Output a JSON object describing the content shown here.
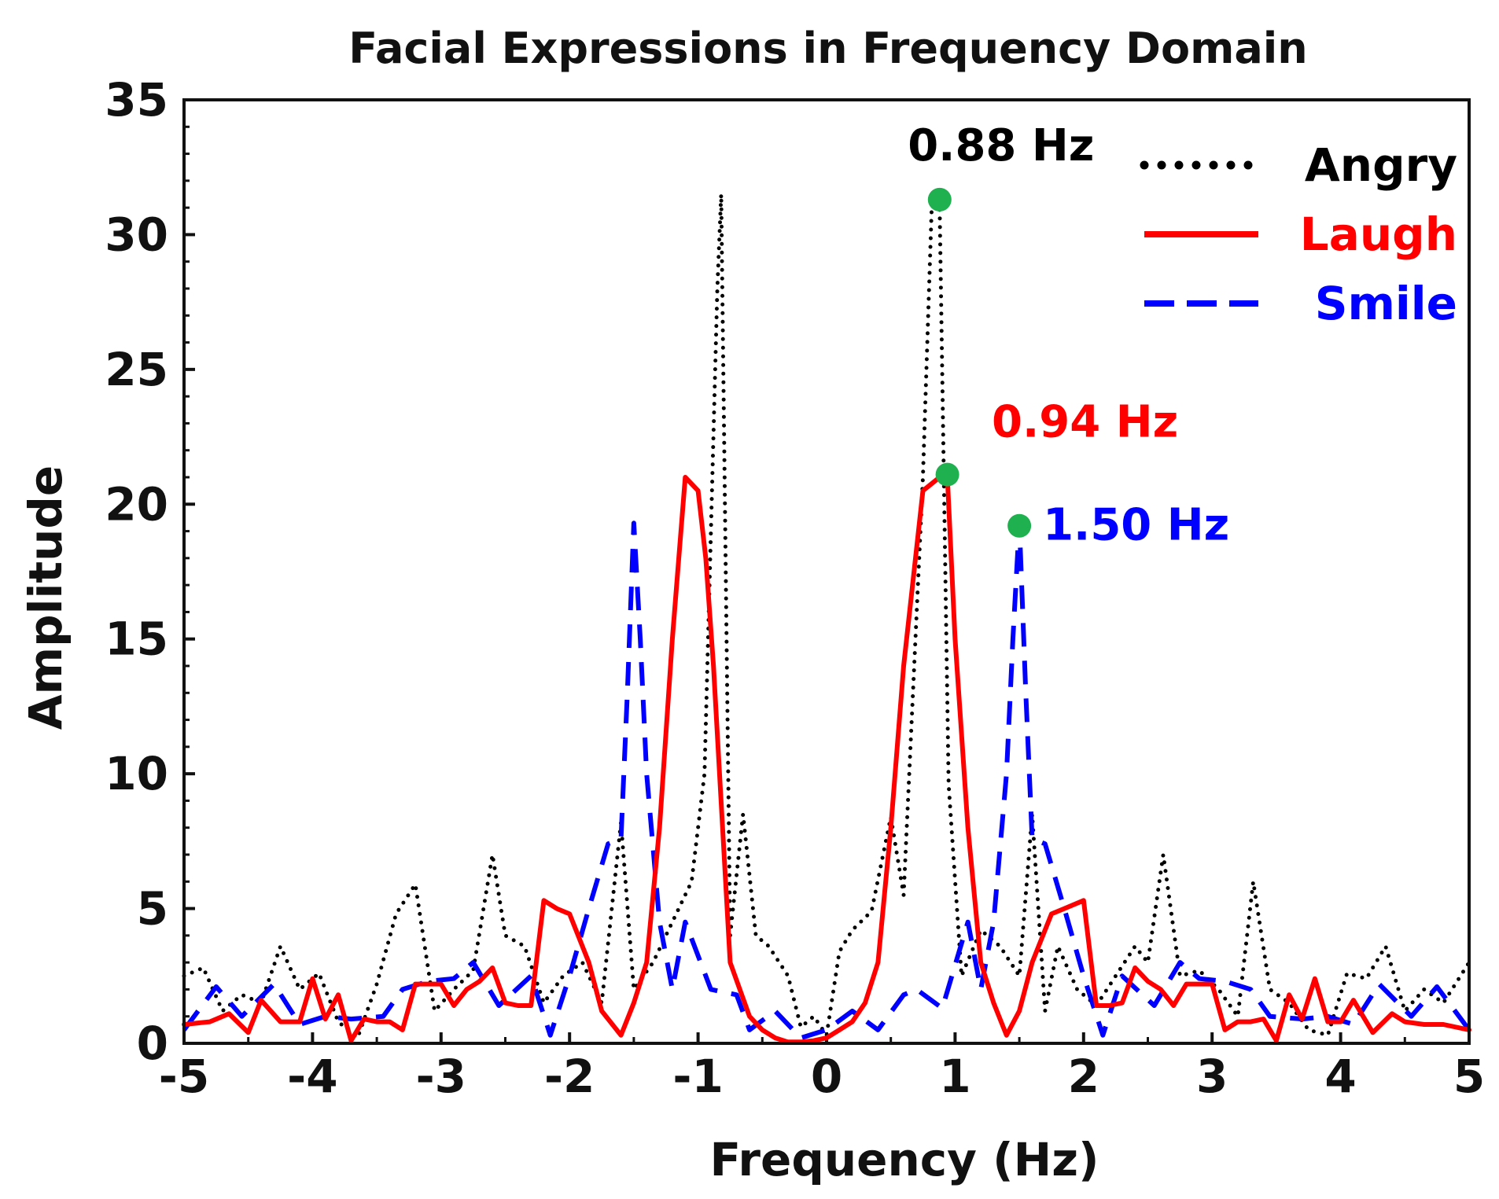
{
  "colors": {
    "angry": "#000000",
    "laugh": "#ff0000",
    "smile": "#0000ff",
    "marker": "#1fb050"
  },
  "chart_data": {
    "type": "line",
    "title": "Facial Expressions in Frequency Domain",
    "xlabel": "Frequency (Hz)",
    "ylabel": "Amplitude",
    "xlim": [
      -5,
      5
    ],
    "ylim": [
      0,
      35
    ],
    "xticks": [
      -5,
      -4,
      -3,
      -2,
      -1,
      0,
      1,
      2,
      3,
      4,
      5
    ],
    "yticks": [
      0,
      5,
      10,
      15,
      20,
      25,
      30,
      35
    ],
    "legend_position": "top-right",
    "series": [
      {
        "name": "Angry",
        "style": "dotted",
        "x": [
          -5,
          -4.85,
          -4.7,
          -4.55,
          -4.4,
          -4.25,
          -4.1,
          -3.95,
          -3.8,
          -3.65,
          -3.5,
          -3.35,
          -3.2,
          -3.05,
          -2.9,
          -2.75,
          -2.6,
          -2.5,
          -2.35,
          -2.2,
          -2.05,
          -1.9,
          -1.75,
          -1.6,
          -1.5,
          -1.35,
          -1.2,
          -1.05,
          -0.95,
          -0.85,
          -0.82,
          -0.75,
          -0.65,
          -0.55,
          -0.45,
          -0.3,
          -0.2,
          -0.1,
          0,
          0.1,
          0.2,
          0.35,
          0.5,
          0.6,
          0.75,
          0.82,
          0.88,
          0.95,
          1.05,
          1.2,
          1.35,
          1.5,
          1.6,
          1.7,
          1.8,
          1.95,
          2.1,
          2.25,
          2.4,
          2.5,
          2.62,
          2.75,
          2.9,
          3.05,
          3.2,
          3.32,
          3.45,
          3.6,
          3.75,
          3.9,
          4.05,
          4.2,
          4.35,
          4.5,
          4.65,
          4.8,
          5
        ],
        "y": [
          2.5,
          2.8,
          1.2,
          1.8,
          1.5,
          3.6,
          2.0,
          2.6,
          0.8,
          0.2,
          2.2,
          4.8,
          5.9,
          1.2,
          2.0,
          2.7,
          7.0,
          4.0,
          3.6,
          1.5,
          2.5,
          3.0,
          1.5,
          8.2,
          2.0,
          3.0,
          4.5,
          6.0,
          10.0,
          28.0,
          31.5,
          4.0,
          8.5,
          4.0,
          3.6,
          2.5,
          0.6,
          1.0,
          0.3,
          3.4,
          4.2,
          4.9,
          8.4,
          5.5,
          21.0,
          31.3,
          31.0,
          9.6,
          2.5,
          4.2,
          3.6,
          2.5,
          8.5,
          1.2,
          3.6,
          2.0,
          1.4,
          2.5,
          3.6,
          3.0,
          7.0,
          2.5,
          2.7,
          2.0,
          1.0,
          6.0,
          2.0,
          1.5,
          0.5,
          0.3,
          2.6,
          2.4,
          3.6,
          1.2,
          2.0,
          1.5,
          3.0
        ]
      },
      {
        "name": "Laugh",
        "style": "solid",
        "x": [
          -5,
          -4.8,
          -4.65,
          -4.5,
          -4.4,
          -4.25,
          -4.1,
          -4.0,
          -3.9,
          -3.8,
          -3.7,
          -3.6,
          -3.5,
          -3.4,
          -3.3,
          -3.2,
          -3.1,
          -3.0,
          -2.9,
          -2.8,
          -2.7,
          -2.6,
          -2.5,
          -2.4,
          -2.3,
          -2.2,
          -2.1,
          -2.0,
          -1.85,
          -1.75,
          -1.6,
          -1.5,
          -1.4,
          -1.3,
          -1.2,
          -1.1,
          -1.0,
          -0.94,
          -0.88,
          -0.75,
          -0.6,
          -0.5,
          -0.4,
          -0.3,
          -0.2,
          -0.1,
          0,
          0.1,
          0.2,
          0.3,
          0.4,
          0.5,
          0.6,
          0.75,
          0.88,
          0.94,
          1.0,
          1.1,
          1.2,
          1.3,
          1.4,
          1.5,
          1.6,
          1.75,
          1.85,
          2.0,
          2.1,
          2.2,
          2.3,
          2.4,
          2.5,
          2.6,
          2.7,
          2.8,
          2.9,
          3.0,
          3.1,
          3.2,
          3.3,
          3.4,
          3.5,
          3.6,
          3.7,
          3.8,
          3.9,
          4.0,
          4.1,
          4.25,
          4.4,
          4.5,
          4.65,
          4.8,
          5
        ],
        "y": [
          0.7,
          0.8,
          1.1,
          0.4,
          1.6,
          0.8,
          0.8,
          2.4,
          0.9,
          1.8,
          0.1,
          0.9,
          0.8,
          0.8,
          0.5,
          2.2,
          2.2,
          2.2,
          1.4,
          2.0,
          2.3,
          2.8,
          1.5,
          1.4,
          1.4,
          5.3,
          5.0,
          4.8,
          3.0,
          1.2,
          0.3,
          1.5,
          3.0,
          8.0,
          15.0,
          21.0,
          20.5,
          18.0,
          14.0,
          3.0,
          1.0,
          0.5,
          0.2,
          0.05,
          0.05,
          0.1,
          0.2,
          0.5,
          0.8,
          1.5,
          3.0,
          8.0,
          14.0,
          20.5,
          21.0,
          21.0,
          15.0,
          8.0,
          3.0,
          1.5,
          0.3,
          1.2,
          3.0,
          4.8,
          5.0,
          5.3,
          1.4,
          1.4,
          1.5,
          2.8,
          2.3,
          2.0,
          1.4,
          2.2,
          2.2,
          2.2,
          0.5,
          0.8,
          0.8,
          0.9,
          0.1,
          1.8,
          0.9,
          2.4,
          0.8,
          0.8,
          1.6,
          0.4,
          1.1,
          0.8,
          0.7,
          0.7,
          0.5
        ]
      },
      {
        "name": "Smile",
        "style": "dashed",
        "x": [
          -5,
          -4.75,
          -4.55,
          -4.3,
          -4.1,
          -3.9,
          -3.7,
          -3.45,
          -3.3,
          -3.1,
          -2.9,
          -2.75,
          -2.55,
          -2.3,
          -2.15,
          -2.0,
          -1.85,
          -1.7,
          -1.6,
          -1.55,
          -1.5,
          -1.45,
          -1.4,
          -1.3,
          -1.2,
          -1.1,
          -0.9,
          -0.7,
          -0.6,
          -0.4,
          -0.2,
          0,
          0.2,
          0.4,
          0.6,
          0.7,
          0.9,
          1.1,
          1.2,
          1.3,
          1.4,
          1.45,
          1.5,
          1.55,
          1.6,
          1.7,
          1.85,
          2.0,
          2.15,
          2.3,
          2.55,
          2.75,
          2.9,
          3.1,
          3.3,
          3.45,
          3.7,
          3.9,
          4.1,
          4.3,
          4.55,
          4.75,
          5
        ],
        "y": [
          0.5,
          2.1,
          1.0,
          2.2,
          0.7,
          1.0,
          0.9,
          1.0,
          2.0,
          2.3,
          2.4,
          3.0,
          1.4,
          2.5,
          0.3,
          2.5,
          5.0,
          7.4,
          7.6,
          13.0,
          19.3,
          15.0,
          10.0,
          4.5,
          2.0,
          4.5,
          2.0,
          1.8,
          0.5,
          1.2,
          0.2,
          0.5,
          1.2,
          0.5,
          1.8,
          2.0,
          1.3,
          4.5,
          2.0,
          4.5,
          10.0,
          15.0,
          19.3,
          13.0,
          7.6,
          7.4,
          5.0,
          2.5,
          0.3,
          2.5,
          1.4,
          3.0,
          2.4,
          2.3,
          2.0,
          1.0,
          0.9,
          1.0,
          0.7,
          2.2,
          1.0,
          2.1,
          0.5
        ]
      }
    ],
    "annotations": [
      {
        "text": "0.88 Hz",
        "x": 0.88,
        "y": 31.3,
        "series": "Angry"
      },
      {
        "text": "0.94 Hz",
        "x": 0.94,
        "y": 21.1,
        "series": "Laugh"
      },
      {
        "text": "1.50 Hz",
        "x": 1.5,
        "y": 19.2,
        "series": "Smile"
      }
    ]
  }
}
